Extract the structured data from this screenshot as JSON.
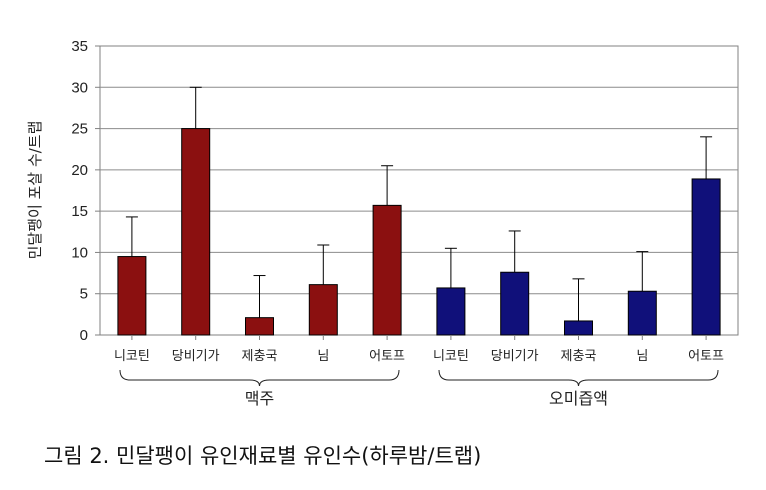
{
  "caption": "그림 2. 민달팽이 유인재료별 유인수(하루밤/트랩)",
  "chart_data": {
    "type": "bar",
    "ylabel": "민달팽이 포살 수/트랩",
    "ylim": [
      0,
      35
    ],
    "yticks": [
      0,
      5,
      10,
      15,
      20,
      25,
      30,
      35
    ],
    "grid": true,
    "legend": "none",
    "error_bars": true,
    "categories": [
      "니코틴",
      "당비기가",
      "제충국",
      "님",
      "어토프",
      "니코틴",
      "당비기가",
      "제충국",
      "님",
      "어토프"
    ],
    "groups": [
      {
        "name": "맥주",
        "color": "#8b1010",
        "values": [
          9.5,
          25.0,
          2.1,
          6.1,
          15.7
        ],
        "errors": [
          4.8,
          5.0,
          5.1,
          4.8,
          4.8
        ]
      },
      {
        "name": "오미즙액",
        "color": "#10107a",
        "values": [
          5.7,
          7.6,
          1.7,
          5.3,
          18.9
        ],
        "errors": [
          4.8,
          5.0,
          5.1,
          4.8,
          5.1
        ]
      }
    ]
  }
}
